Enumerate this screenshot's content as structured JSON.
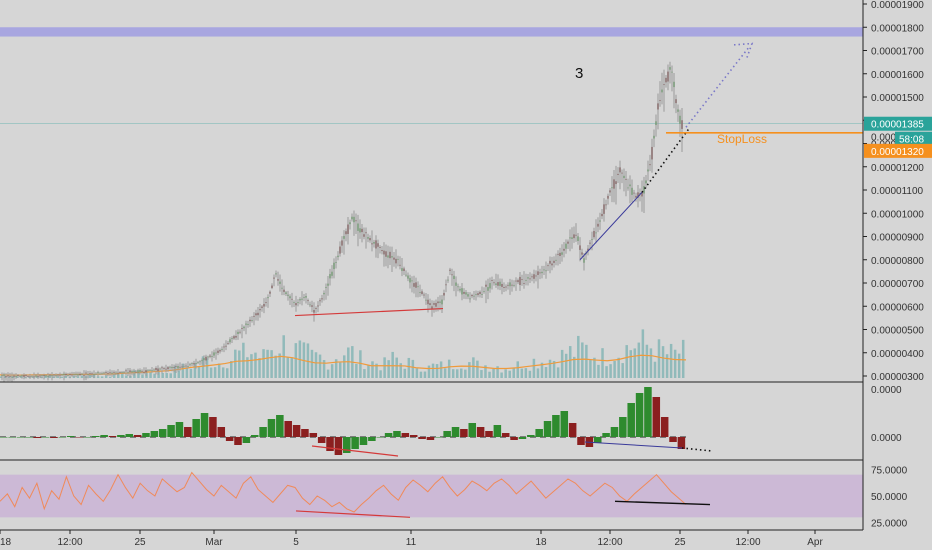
{
  "colors": {
    "background": "#d6d6d6",
    "up": "#2e8b2e",
    "down": "#8b1f1f",
    "candle": "#9a9a9a",
    "volume": "#7fb3b3",
    "volume_ma": "#f09a3a",
    "resistance_band": "#a8a6e0",
    "stoploss": "#f5901e",
    "rsi_band": "#cbb6d6",
    "rsi_line": "#f08a5a",
    "trend_blue": "#3a3a9a",
    "divergence_red": "#d43a3a",
    "price_label": "#2aa39a"
  },
  "chart_data": [
    {
      "type": "line",
      "name": "price-panel",
      "y_ticks": [
        "0.00001900",
        "0.00001800",
        "0.00001700",
        "0.00001600",
        "0.00001500",
        "0.00001400",
        "0.00001300",
        "0.00001200",
        "0.00001100",
        "0.00001000",
        "0.00000900",
        "0.00000800",
        "0.00000700",
        "0.00000600",
        "0.00000500",
        "0.00000400",
        "0.00000300"
      ],
      "ylim": [
        3e-06,
        1.9e-05
      ],
      "price_path": [
        [
          0,
          3e-06
        ],
        [
          40,
          3e-06
        ],
        [
          90,
          3.1e-06
        ],
        [
          140,
          3.2e-06
        ],
        [
          180,
          3.4e-06
        ],
        [
          200,
          3.6e-06
        ],
        [
          220,
          4.1e-06
        ],
        [
          240,
          4.9e-06
        ],
        [
          258,
          5.7e-06
        ],
        [
          268,
          6.3e-06
        ],
        [
          276,
          7.4e-06
        ],
        [
          285,
          6.6e-06
        ],
        [
          295,
          6.1e-06
        ],
        [
          305,
          6.4e-06
        ],
        [
          315,
          5.8e-06
        ],
        [
          325,
          6.6e-06
        ],
        [
          338,
          8.2e-06
        ],
        [
          352,
          9.8e-06
        ],
        [
          362,
          9.2e-06
        ],
        [
          372,
          8.8e-06
        ],
        [
          385,
          8.3e-06
        ],
        [
          398,
          8e-06
        ],
        [
          410,
          7.1e-06
        ],
        [
          420,
          6.7e-06
        ],
        [
          432,
          6e-06
        ],
        [
          442,
          6.2e-06
        ],
        [
          450,
          7.5e-06
        ],
        [
          458,
          6.8e-06
        ],
        [
          470,
          6.4e-06
        ],
        [
          482,
          6.6e-06
        ],
        [
          495,
          7.1e-06
        ],
        [
          505,
          6.8e-06
        ],
        [
          520,
          7.1e-06
        ],
        [
          535,
          7.3e-06
        ],
        [
          548,
          7.7e-06
        ],
        [
          558,
          8.1e-06
        ],
        [
          568,
          8.7e-06
        ],
        [
          576,
          9.2e-06
        ],
        [
          584,
          8e-06
        ],
        [
          592,
          8.9e-06
        ],
        [
          600,
          9.7e-06
        ],
        [
          610,
          1.09e-05
        ],
        [
          620,
          1.18e-05
        ],
        [
          628,
          1.12e-05
        ],
        [
          636,
          1.07e-05
        ],
        [
          644,
          1.1e-05
        ],
        [
          652,
          1.26e-05
        ],
        [
          660,
          1.51e-05
        ],
        [
          666,
          1.57e-05
        ],
        [
          671,
          1.62e-05
        ],
        [
          676,
          1.48e-05
        ],
        [
          681,
          1.38e-05
        ]
      ],
      "last_price": "0.00001385",
      "countdown": "58:08",
      "price_label_partial": "0.0000",
      "stoploss_price": "0.00001320",
      "stoploss_label": "StopLoss",
      "resistance_band": [
        1.76e-05,
        1.8e-05
      ],
      "wave_label": "3"
    },
    {
      "type": "bar",
      "name": "volume",
      "values": [
        2,
        2,
        1,
        2,
        3,
        2,
        2,
        4,
        3,
        2,
        5,
        4,
        6,
        8,
        7,
        10,
        12,
        15,
        20,
        18,
        22,
        28,
        30,
        25,
        35,
        40,
        32,
        28,
        24,
        20,
        26,
        30,
        22,
        18,
        16,
        22,
        18,
        15,
        12,
        14,
        16,
        20,
        18,
        15,
        14,
        12,
        15,
        18,
        20,
        22,
        26,
        30,
        34,
        28,
        25,
        30,
        35,
        40,
        38,
        32,
        28,
        30
      ]
    },
    {
      "type": "bar",
      "name": "histogram-oscillator",
      "y_ticks": [
        "0.0000",
        "0.0000"
      ],
      "values": [
        0,
        0,
        0,
        0,
        -1,
        0,
        -1,
        0,
        1,
        0,
        0,
        1,
        2,
        1,
        2,
        3,
        2,
        4,
        6,
        8,
        12,
        15,
        10,
        18,
        24,
        20,
        10,
        -4,
        -8,
        -6,
        2,
        10,
        18,
        22,
        16,
        12,
        8,
        4,
        -6,
        -14,
        -18,
        -16,
        -12,
        -8,
        -4,
        0,
        4,
        6,
        4,
        2,
        -2,
        -3,
        0,
        6,
        10,
        8,
        14,
        10,
        6,
        12,
        4,
        -3,
        -2,
        2,
        8,
        16,
        22,
        26,
        14,
        -8,
        -10,
        -6,
        4,
        10,
        20,
        34,
        44,
        50,
        40,
        20,
        -5,
        -12
      ]
    },
    {
      "type": "line",
      "name": "rsi",
      "y_ticks": [
        "75.0000",
        "50.0000",
        "25.0000"
      ],
      "ylim": [
        20,
        80
      ],
      "band": [
        30,
        70
      ],
      "values": [
        45,
        52,
        40,
        58,
        48,
        62,
        38,
        55,
        47,
        68,
        50,
        42,
        60,
        52,
        45,
        56,
        70,
        58,
        48,
        62,
        55,
        50,
        66,
        60,
        54,
        58,
        72,
        64,
        56,
        50,
        60,
        54,
        48,
        62,
        68,
        56,
        50,
        44,
        52,
        60,
        58,
        48,
        42,
        50,
        46,
        40,
        44,
        38,
        35,
        42,
        48,
        55,
        60,
        52,
        46,
        58,
        65,
        60,
        54,
        62,
        68,
        58,
        50,
        56,
        64,
        60,
        55,
        62,
        66,
        60,
        52,
        58,
        64,
        56,
        48,
        54,
        60,
        66,
        62,
        55,
        50,
        56,
        62,
        58,
        50,
        45,
        52,
        58,
        64,
        70,
        62,
        54,
        48,
        42
      ]
    }
  ],
  "x_ticks": [
    "18",
    "12:00",
    "25",
    "Mar",
    "5",
    "11",
    "18",
    "12:00",
    "25",
    "12:00",
    "Apr"
  ]
}
